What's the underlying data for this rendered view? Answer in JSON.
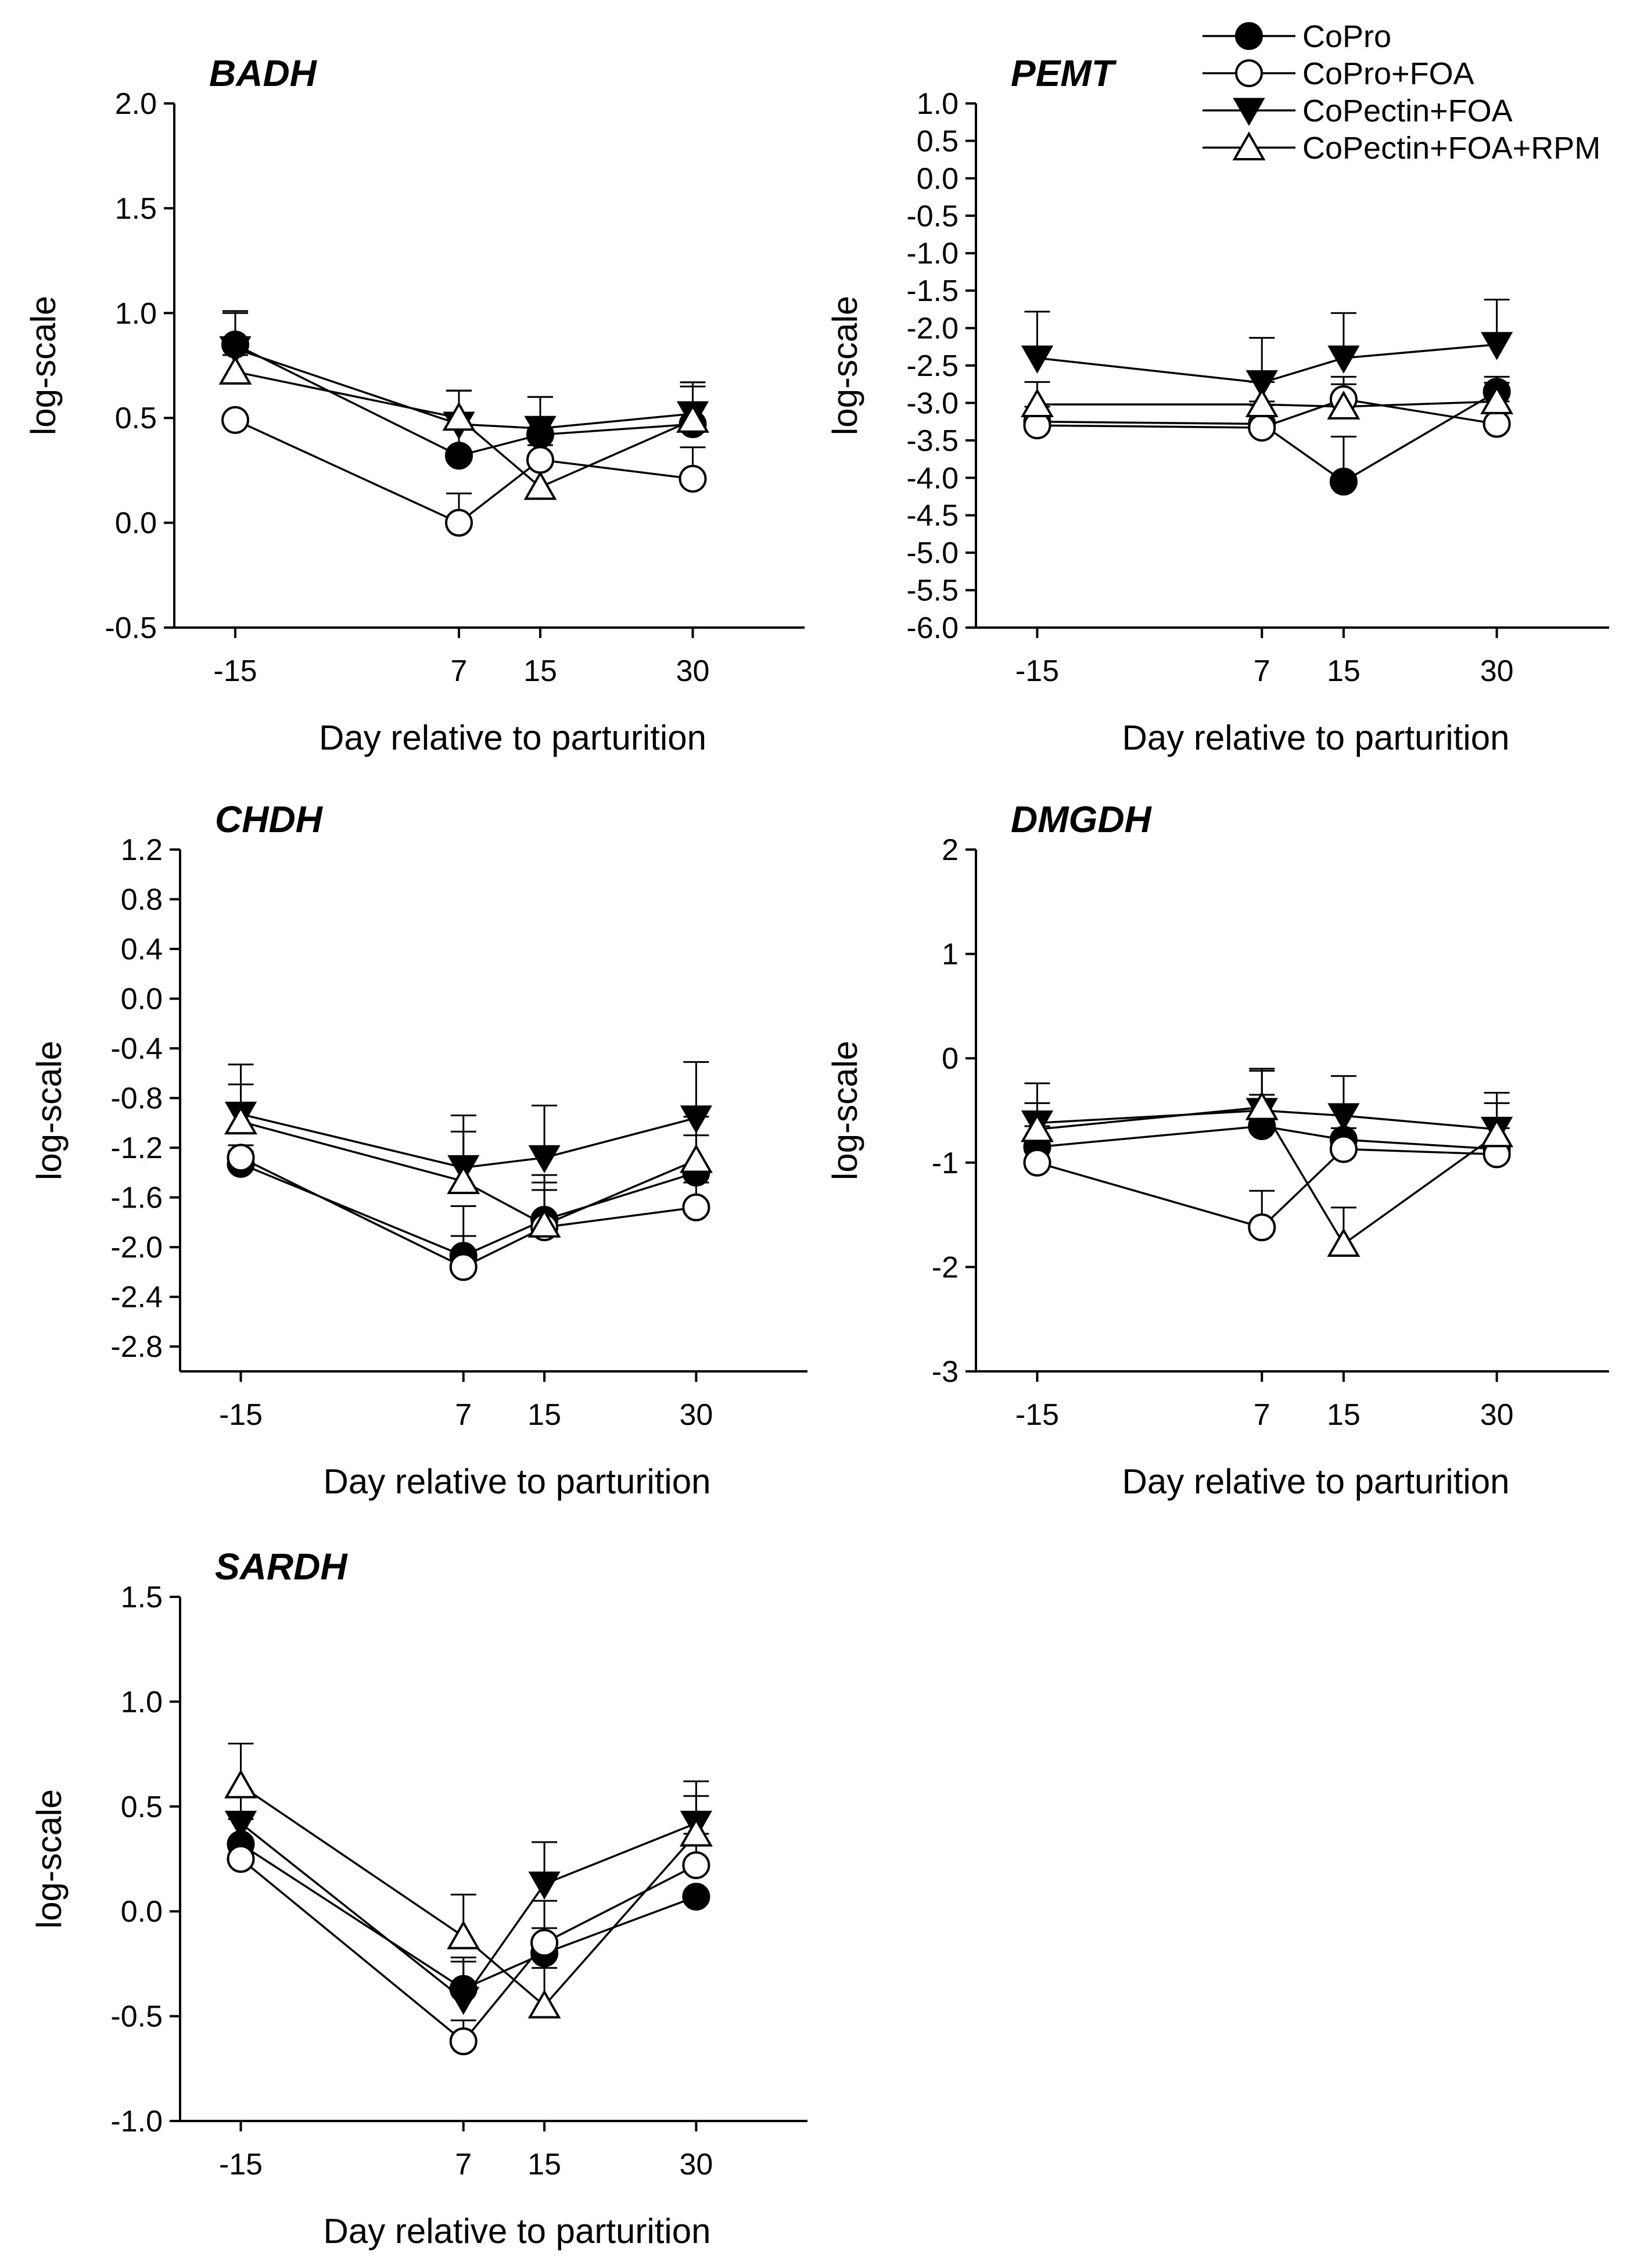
{
  "legend": [
    {
      "name": "CoPro",
      "marker": "filled-circle"
    },
    {
      "name": "CoPro+FOA",
      "marker": "open-circle"
    },
    {
      "name": "CoPectin+FOA",
      "marker": "filled-triangle-down"
    },
    {
      "name": "CoPectin+FOA+RPM",
      "marker": "open-triangle-up"
    }
  ],
  "chart_data": [
    {
      "type": "line",
      "title": "BADH",
      "xlabel": "Day relative to parturition",
      "ylabel": "log-scale",
      "x": [
        -15,
        7,
        15,
        30
      ],
      "xticks": [
        "-15",
        "7",
        "15",
        "30"
      ],
      "xlim": [
        -21,
        41
      ],
      "ylim": [
        -0.5,
        2.0
      ],
      "yticks": [
        -0.5,
        0.0,
        0.5,
        1.0,
        1.5,
        2.0
      ],
      "ytick_labels": [
        "-0.5",
        "0.0",
        "0.5",
        "1.0",
        "1.5",
        "2.0"
      ],
      "series": [
        {
          "name": "CoPro",
          "values": [
            0.85,
            0.32,
            0.42,
            0.47
          ],
          "error": [
            0.15,
            0.31,
            0.18,
            0.2
          ]
        },
        {
          "name": "CoPro+FOA",
          "values": [
            0.49,
            0.0,
            0.3,
            0.21
          ],
          "error": [
            0,
            0.14,
            0.1,
            0.15
          ]
        },
        {
          "name": "CoPectin+FOA",
          "values": [
            0.83,
            0.47,
            0.45,
            0.52
          ],
          "error": [
            0.18,
            0.16,
            0.15,
            0.15
          ]
        },
        {
          "name": "CoPectin+FOA+RPM",
          "values": [
            0.72,
            0.5,
            0.17,
            0.49
          ],
          "error": [
            0.08,
            0.13,
            0.2,
            0.16
          ]
        }
      ]
    },
    {
      "type": "line",
      "title": "PEMT",
      "xlabel": "Day relative to parturition",
      "ylabel": "log-scale",
      "x": [
        -15,
        7,
        15,
        30
      ],
      "xticks": [
        "-15",
        "7",
        "15",
        "30"
      ],
      "xlim": [
        -21,
        41
      ],
      "ylim": [
        -6.0,
        1.0
      ],
      "yticks": [
        -6.0,
        -5.5,
        -5.0,
        -4.5,
        -4.0,
        -3.5,
        -3.0,
        -2.5,
        -2.0,
        -1.5,
        -1.0,
        -0.5,
        0.0,
        0.5,
        1.0
      ],
      "ytick_labels": [
        "-6.0",
        "-5.5",
        "-5.0",
        "-4.5",
        "-4.0",
        "-3.5",
        "-3.0",
        "-2.5",
        "-2.0",
        "-1.5",
        "-1.0",
        "-0.5",
        "0.0",
        "0.5",
        "1.0"
      ],
      "series": [
        {
          "name": "CoPro",
          "values": [
            -3.25,
            -3.28,
            -4.05,
            -2.85
          ],
          "error": [
            0.12,
            0.3,
            0.6,
            0.2
          ]
        },
        {
          "name": "CoPro+FOA",
          "values": [
            -3.3,
            -3.33,
            -2.95,
            -3.28
          ],
          "error": [
            0.25,
            0.3,
            0.3,
            0.3
          ]
        },
        {
          "name": "CoPectin+FOA",
          "values": [
            -2.4,
            -2.73,
            -2.4,
            -2.22
          ],
          "error": [
            0.62,
            0.6,
            0.6,
            0.6
          ]
        },
        {
          "name": "CoPectin+FOA+RPM",
          "values": [
            -3.02,
            -3.02,
            -3.05,
            -2.98
          ],
          "error": [
            0.3,
            0.3,
            0.3,
            0.25
          ]
        }
      ]
    },
    {
      "type": "line",
      "title": "CHDH",
      "xlabel": "Day relative to parturition",
      "ylabel": "log-scale",
      "x": [
        -15,
        7,
        15,
        30
      ],
      "xticks": [
        "-15",
        "7",
        "15",
        "30"
      ],
      "xlim": [
        -21,
        41
      ],
      "ylim": [
        -3.0,
        1.2
      ],
      "yticks": [
        -2.8,
        -2.4,
        -2.0,
        -1.6,
        -1.2,
        -0.8,
        -0.4,
        0.0,
        0.4,
        0.8,
        1.2
      ],
      "ytick_labels": [
        "-2.8",
        "-2.4",
        "-2.0",
        "-1.6",
        "-1.2",
        "-0.8",
        "-0.4",
        "0.0",
        "0.4",
        "0.8",
        "1.2"
      ],
      "series": [
        {
          "name": "CoPro",
          "values": [
            -1.33,
            -2.07,
            -1.78,
            -1.4
          ],
          "error": [
            0.1,
            0.4,
            0.3,
            0.3
          ]
        },
        {
          "name": "CoPro+FOA",
          "values": [
            -1.28,
            -2.16,
            -1.84,
            -1.68
          ],
          "error": [
            0.1,
            0.25,
            0.3,
            0.2
          ]
        },
        {
          "name": "CoPectin+FOA",
          "values": [
            -0.93,
            -1.36,
            -1.28,
            -0.96
          ],
          "error": [
            0.4,
            0.42,
            0.42,
            0.45
          ]
        },
        {
          "name": "CoPectin+FOA+RPM",
          "values": [
            -0.99,
            -1.47,
            -1.82,
            -1.3
          ],
          "error": [
            0.3,
            0.4,
            0.4,
            0.35
          ]
        }
      ]
    },
    {
      "type": "line",
      "title": "DMGDH",
      "xlabel": "Day relative to parturition",
      "ylabel": "log-scale",
      "x": [
        -15,
        7,
        15,
        30
      ],
      "xticks": [
        "-15",
        "7",
        "15",
        "30"
      ],
      "xlim": [
        -21,
        41
      ],
      "ylim": [
        -3,
        2
      ],
      "yticks": [
        -3,
        -2,
        -1,
        0,
        1,
        2
      ],
      "ytick_labels": [
        "-3",
        "-2",
        "-1",
        "0",
        "1",
        "2"
      ],
      "series": [
        {
          "name": "CoPro",
          "values": [
            -0.85,
            -0.65,
            -0.78,
            -0.87
          ],
          "error": [
            0.2,
            0.3,
            0.3,
            0.3
          ]
        },
        {
          "name": "CoPro+FOA",
          "values": [
            -1.0,
            -1.62,
            -0.87,
            -0.92
          ],
          "error": [
            0.2,
            0.35,
            0.2,
            0.25
          ]
        },
        {
          "name": "CoPectin+FOA",
          "values": [
            -0.62,
            -0.5,
            -0.55,
            -0.68
          ],
          "error": [
            0.38,
            0.4,
            0.38,
            0.35
          ]
        },
        {
          "name": "CoPectin+FOA+RPM",
          "values": [
            -0.68,
            -0.47,
            -1.78,
            -0.73
          ],
          "error": [
            0.25,
            0.35,
            0.35,
            0.3
          ]
        }
      ]
    },
    {
      "type": "line",
      "title": "SARDH",
      "xlabel": "Day relative to parturition",
      "ylabel": "log-scale",
      "x": [
        -15,
        7,
        15,
        30
      ],
      "xticks": [
        "-15",
        "7",
        "15",
        "30"
      ],
      "xlim": [
        -21,
        41
      ],
      "ylim": [
        -1.0,
        1.5
      ],
      "yticks": [
        -1.0,
        -0.5,
        0.0,
        0.5,
        1.0,
        1.5
      ],
      "ytick_labels": [
        "-1.0",
        "-0.5",
        "0.0",
        "0.5",
        "1.0",
        "1.5"
      ],
      "series": [
        {
          "name": "CoPro",
          "values": [
            0.32,
            -0.37,
            -0.2,
            0.07
          ],
          "error": [
            0.12,
            0.15,
            0.12,
            0
          ]
        },
        {
          "name": "CoPro+FOA",
          "values": [
            0.25,
            -0.62,
            -0.15,
            0.22
          ],
          "error": [
            0.08,
            0.1,
            0.2,
            0.15
          ]
        },
        {
          "name": "CoPectin+FOA",
          "values": [
            0.42,
            -0.42,
            0.13,
            0.42
          ],
          "error": [
            0.15,
            0.18,
            0.2,
            0.2
          ]
        },
        {
          "name": "CoPectin+FOA+RPM",
          "values": [
            0.6,
            -0.12,
            -0.45,
            0.37
          ],
          "error": [
            0.2,
            0.2,
            0.18,
            0.18
          ]
        }
      ]
    }
  ]
}
